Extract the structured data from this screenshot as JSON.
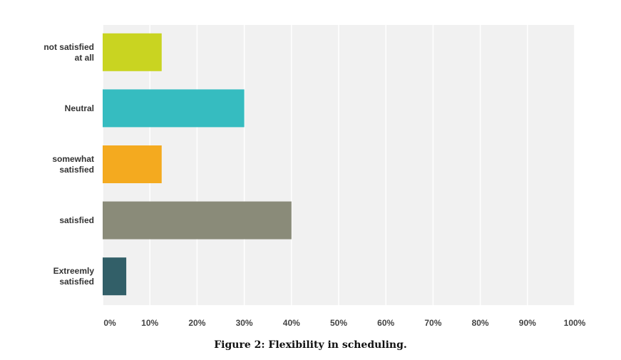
{
  "chart_data": {
    "type": "bar",
    "orientation": "horizontal",
    "categories": [
      [
        "not satisfied",
        "at all"
      ],
      [
        "Neutral"
      ],
      [
        "somewhat",
        "satisfied"
      ],
      [
        "satisfied"
      ],
      [
        "Extreemly",
        "satisfied"
      ]
    ],
    "values": [
      12.5,
      30,
      12.5,
      40,
      5
    ],
    "colors": [
      "#c9d421",
      "#36bcc0",
      "#f4aa1f",
      "#8a8b79",
      "#325f68"
    ],
    "xlim": [
      0,
      100
    ],
    "x_ticks": [
      "0%",
      "10%",
      "20%",
      "30%",
      "40%",
      "50%",
      "60%",
      "70%",
      "80%",
      "90%",
      "100%"
    ],
    "grid": true
  },
  "caption": "Figure 2: Flexibility in scheduling."
}
